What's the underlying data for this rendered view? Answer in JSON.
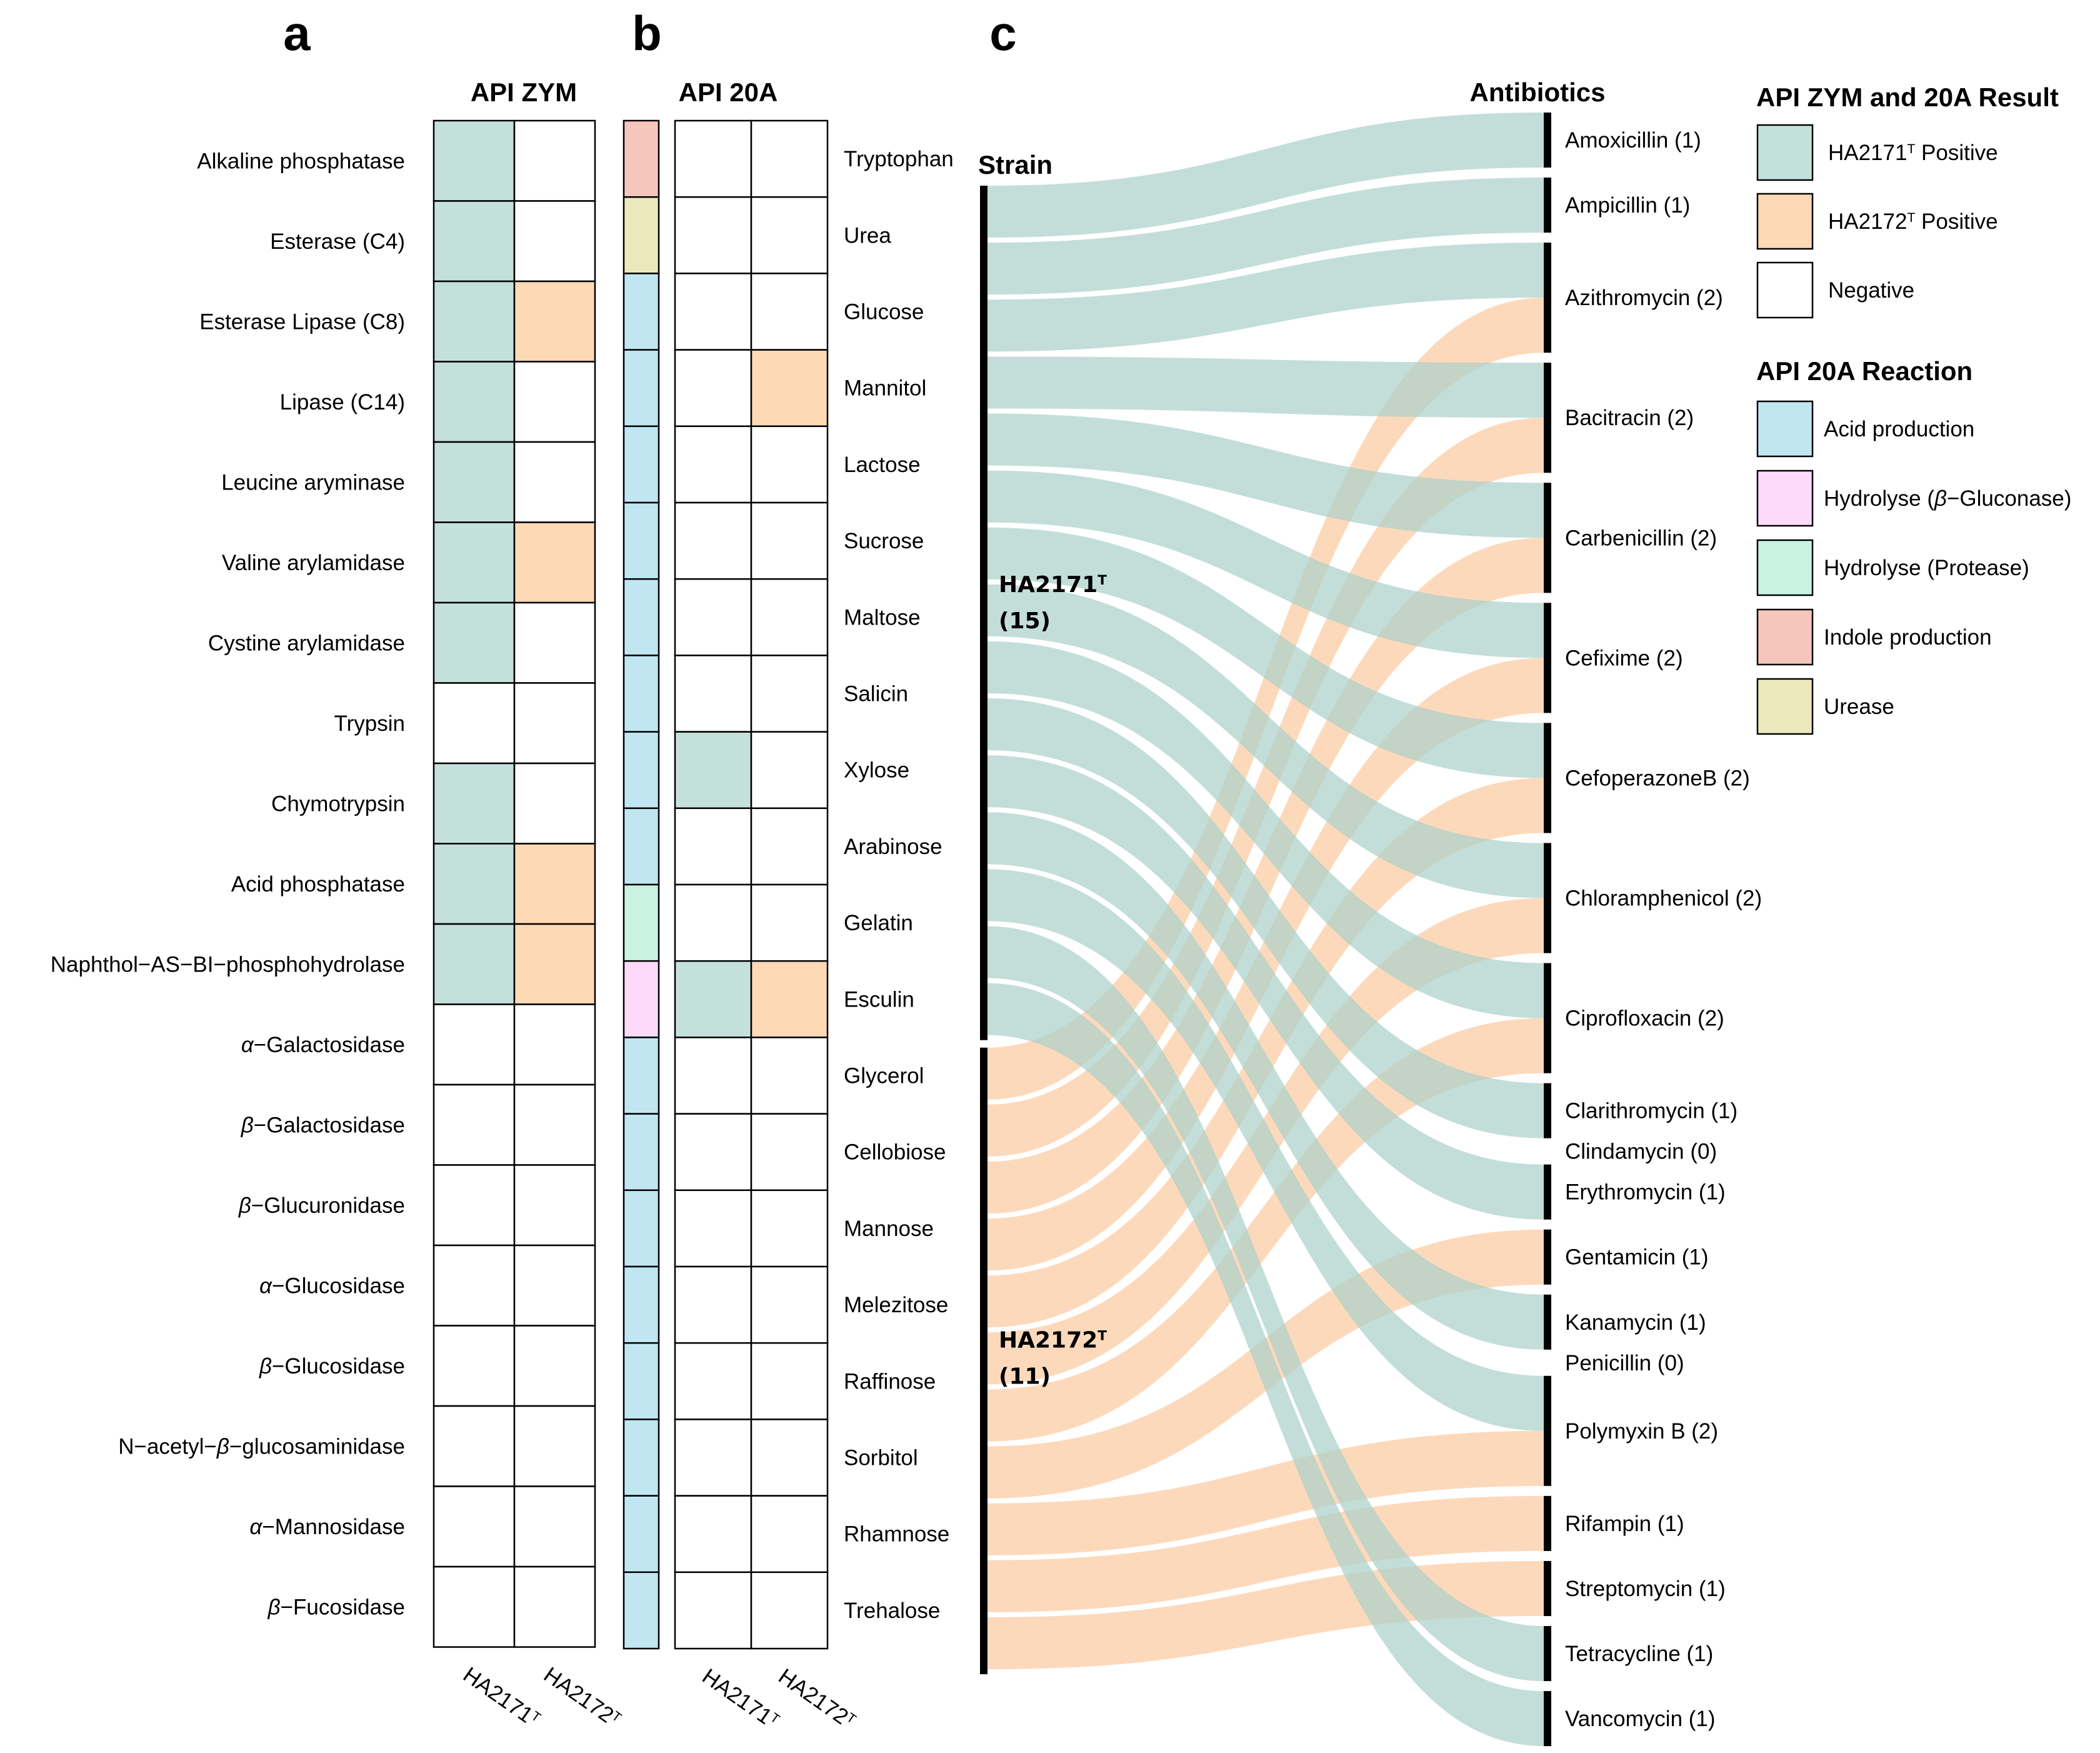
{
  "panels": {
    "a": "a",
    "b": "b",
    "c": "c"
  },
  "chart_data": [
    {
      "type": "heatmap",
      "title": "API ZYM",
      "columns": [
        "HA2171ᵀ",
        "HA2172ᵀ"
      ],
      "rows": [
        {
          "label": "Alkaline phosphatase",
          "values": [
            1,
            0
          ]
        },
        {
          "label": "Esterase (C4)",
          "values": [
            1,
            0
          ]
        },
        {
          "label": "Esterase Lipase (C8)",
          "values": [
            1,
            1
          ]
        },
        {
          "label": "Lipase (C14)",
          "values": [
            1,
            0
          ]
        },
        {
          "label": "Leucine aryminase",
          "values": [
            1,
            0
          ]
        },
        {
          "label": "Valine arylamidase",
          "values": [
            1,
            1
          ]
        },
        {
          "label": "Cystine arylamidase",
          "values": [
            1,
            0
          ]
        },
        {
          "label": "Trypsin",
          "values": [
            0,
            0
          ]
        },
        {
          "label": "Chymotrypsin",
          "values": [
            1,
            0
          ]
        },
        {
          "label": "Acid phosphatase",
          "values": [
            1,
            1
          ]
        },
        {
          "label": "Naphthol−AS−BI−phosphohydrolase",
          "values": [
            1,
            1
          ]
        },
        {
          "label": "α−Galactosidase",
          "values": [
            0,
            0
          ]
        },
        {
          "label": "β−Galactosidase",
          "values": [
            0,
            0
          ]
        },
        {
          "label": "β−Glucuronidase",
          "values": [
            0,
            0
          ]
        },
        {
          "label": "α−Glucosidase",
          "values": [
            0,
            0
          ]
        },
        {
          "label": "β−Glucosidase",
          "values": [
            0,
            0
          ]
        },
        {
          "label": "N−acetyl−β−glucosaminidase",
          "values": [
            0,
            0
          ]
        },
        {
          "label": "α−Mannosidase",
          "values": [
            0,
            0
          ]
        },
        {
          "label": "β−Fucosidase",
          "values": [
            0,
            0
          ]
        }
      ]
    },
    {
      "type": "heatmap",
      "title": "API 20A",
      "columns": [
        "HA2171ᵀ",
        "HA2172ᵀ"
      ],
      "rows": [
        {
          "label": "Tryptophan",
          "reaction": "Indole production",
          "values": [
            0,
            0
          ]
        },
        {
          "label": "Urea",
          "reaction": "Urease",
          "values": [
            0,
            0
          ]
        },
        {
          "label": "Glucose",
          "reaction": "Acid production",
          "values": [
            0,
            0
          ]
        },
        {
          "label": "Mannitol",
          "reaction": "Acid production",
          "values": [
            0,
            1
          ]
        },
        {
          "label": "Lactose",
          "reaction": "Acid production",
          "values": [
            0,
            0
          ]
        },
        {
          "label": "Sucrose",
          "reaction": "Acid production",
          "values": [
            0,
            0
          ]
        },
        {
          "label": "Maltose",
          "reaction": "Acid production",
          "values": [
            0,
            0
          ]
        },
        {
          "label": "Salicin",
          "reaction": "Acid production",
          "values": [
            0,
            0
          ]
        },
        {
          "label": "Xylose",
          "reaction": "Acid production",
          "values": [
            1,
            0
          ]
        },
        {
          "label": "Arabinose",
          "reaction": "Acid production",
          "values": [
            0,
            0
          ]
        },
        {
          "label": "Gelatin",
          "reaction": "Hydrolyse (Protease)",
          "values": [
            0,
            0
          ]
        },
        {
          "label": "Esculin",
          "reaction": "Hydrolyse (β−Gluconase)",
          "values": [
            1,
            1
          ]
        },
        {
          "label": "Glycerol",
          "reaction": "Acid production",
          "values": [
            0,
            0
          ]
        },
        {
          "label": "Cellobiose",
          "reaction": "Acid production",
          "values": [
            0,
            0
          ]
        },
        {
          "label": "Mannose",
          "reaction": "Acid production",
          "values": [
            0,
            0
          ]
        },
        {
          "label": "Melezitose",
          "reaction": "Acid production",
          "values": [
            0,
            0
          ]
        },
        {
          "label": "Raffinose",
          "reaction": "Acid production",
          "values": [
            0,
            0
          ]
        },
        {
          "label": "Sorbitol",
          "reaction": "Acid production",
          "values": [
            0,
            0
          ]
        },
        {
          "label": "Rhamnose",
          "reaction": "Acid production",
          "values": [
            0,
            0
          ]
        },
        {
          "label": "Trehalose",
          "reaction": "Acid production",
          "values": [
            0,
            0
          ]
        }
      ]
    },
    {
      "type": "sankey",
      "source_title": "Strain",
      "target_title": "Antibiotics",
      "sources": [
        {
          "name": "HA2171ᵀ",
          "count_label": "(15)"
        },
        {
          "name": "HA2172ᵀ",
          "count_label": "(11)"
        }
      ],
      "targets": [
        {
          "label": "Amoxicillin (1)",
          "HA2171": 1,
          "HA2172": 0
        },
        {
          "label": "Ampicillin (1)",
          "HA2171": 1,
          "HA2172": 0
        },
        {
          "label": "Azithromycin (2)",
          "HA2171": 1,
          "HA2172": 1
        },
        {
          "label": "Bacitracin (2)",
          "HA2171": 1,
          "HA2172": 1
        },
        {
          "label": "Carbenicillin (2)",
          "HA2171": 1,
          "HA2172": 1
        },
        {
          "label": "Cefixime (2)",
          "HA2171": 1,
          "HA2172": 1
        },
        {
          "label": "CefoperazoneB (2)",
          "HA2171": 1,
          "HA2172": 1
        },
        {
          "label": "Chloramphenicol (2)",
          "HA2171": 1,
          "HA2172": 1
        },
        {
          "label": "Ciprofloxacin (2)",
          "HA2171": 1,
          "HA2172": 1
        },
        {
          "label": "Clarithromycin (1)",
          "HA2171": 1,
          "HA2172": 0
        },
        {
          "label": "Clindamycin (0)",
          "HA2171": 0,
          "HA2172": 0
        },
        {
          "label": "Erythromycin (1)",
          "HA2171": 1,
          "HA2172": 0
        },
        {
          "label": "Gentamicin (1)",
          "HA2171": 0,
          "HA2172": 1
        },
        {
          "label": "Kanamycin (1)",
          "HA2171": 1,
          "HA2172": 0
        },
        {
          "label": "Penicillin (0)",
          "HA2171": 0,
          "HA2172": 0
        },
        {
          "label": "Polymyxin B (2)",
          "HA2171": 1,
          "HA2172": 1
        },
        {
          "label": "Rifampin (1)",
          "HA2171": 0,
          "HA2172": 1
        },
        {
          "label": "Streptomycin (1)",
          "HA2171": 0,
          "HA2172": 1
        },
        {
          "label": "Tetracycline (1)",
          "HA2171": 1,
          "HA2172": 0
        },
        {
          "label": "Vancomycin (1)",
          "HA2171": 1,
          "HA2172": 0
        }
      ]
    }
  ],
  "legend": {
    "result_title": "API ZYM and 20A Result",
    "result_items": [
      {
        "label": "HA2171ᵀ Positive",
        "color": "#c4e0da"
      },
      {
        "label": "HA2172ᵀ Positive",
        "color": "#fdd9b5"
      },
      {
        "label": "Negative",
        "color": "#ffffff"
      }
    ],
    "reaction_title": "API 20A Reaction",
    "reaction_items": [
      {
        "label": "Acid production",
        "color": "#c0e6f2"
      },
      {
        "label": "Hydrolyse (β−Gluconase)",
        "color": "#fedafa"
      },
      {
        "label": "Hydrolyse (Protease)",
        "color": "#c9f2e3"
      },
      {
        "label": "Indole production",
        "color": "#f6c6bc"
      },
      {
        "label": "Urease",
        "color": "#ebe9bc"
      }
    ]
  },
  "colors": {
    "ha2171": "#a9d0c9",
    "ha2172": "#fcc9a0"
  }
}
